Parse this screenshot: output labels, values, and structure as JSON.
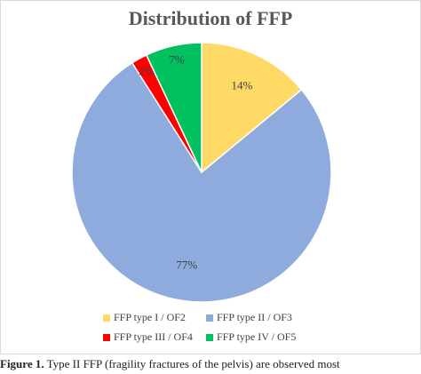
{
  "chart_data": {
    "type": "pie",
    "title": "Distribution of FFP",
    "categories": [
      "FFP type I / OF2",
      "FFP type II / OF3",
      "FFP type III / OF4",
      "FFP type IV / OF5"
    ],
    "values": [
      14,
      77,
      2,
      7
    ],
    "value_labels": [
      "14%",
      "77%",
      "2%",
      "7%"
    ],
    "colors": [
      "#ffd966",
      "#8faadc",
      "#ff0000",
      "#00c060"
    ],
    "legend": "bottom"
  },
  "caption": {
    "label": "Figure 1.",
    "text": "Type II FFP (fragility fractures of the pelvis) are observed most"
  }
}
